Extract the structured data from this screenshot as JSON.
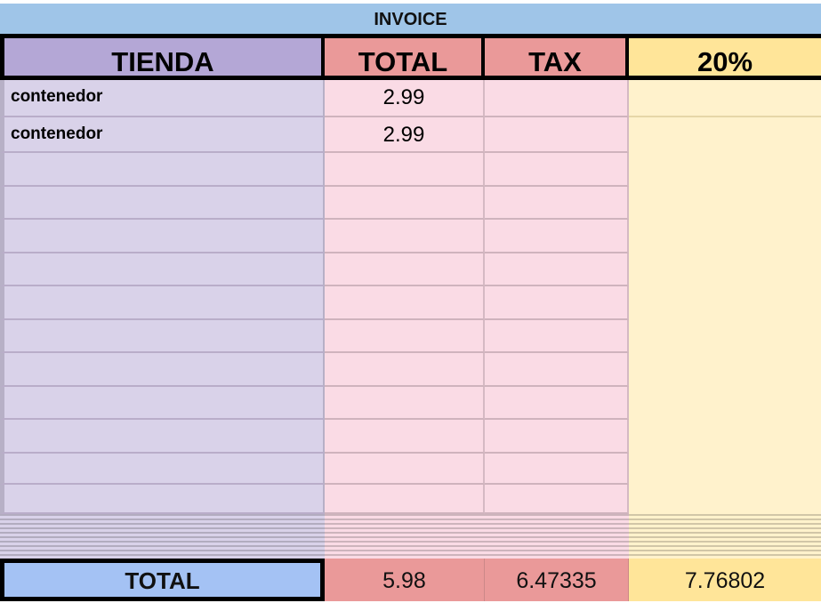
{
  "title": "INVOICE",
  "headers": {
    "tienda": "TIENDA",
    "total": "TOTAL",
    "tax": "TAX",
    "pct": "20%"
  },
  "rows": [
    {
      "tienda": "contenedor",
      "total": "2.99",
      "tax": ""
    },
    {
      "tienda": "contenedor",
      "total": "2.99",
      "tax": ""
    }
  ],
  "totals": {
    "label": "TOTAL",
    "total": "5.98",
    "tax": "6.47335",
    "pct": "7.76802"
  },
  "colors": {
    "invoice": "#9fc5e8",
    "tienda_header": "#b4a7d6",
    "tienda_body": "#d9d2e9",
    "total_header": "#ea9999",
    "total_body": "#fadbe5",
    "pct_header": "#ffe599",
    "pct_body": "#fff2cc",
    "total_label": "#a4c2f4"
  }
}
